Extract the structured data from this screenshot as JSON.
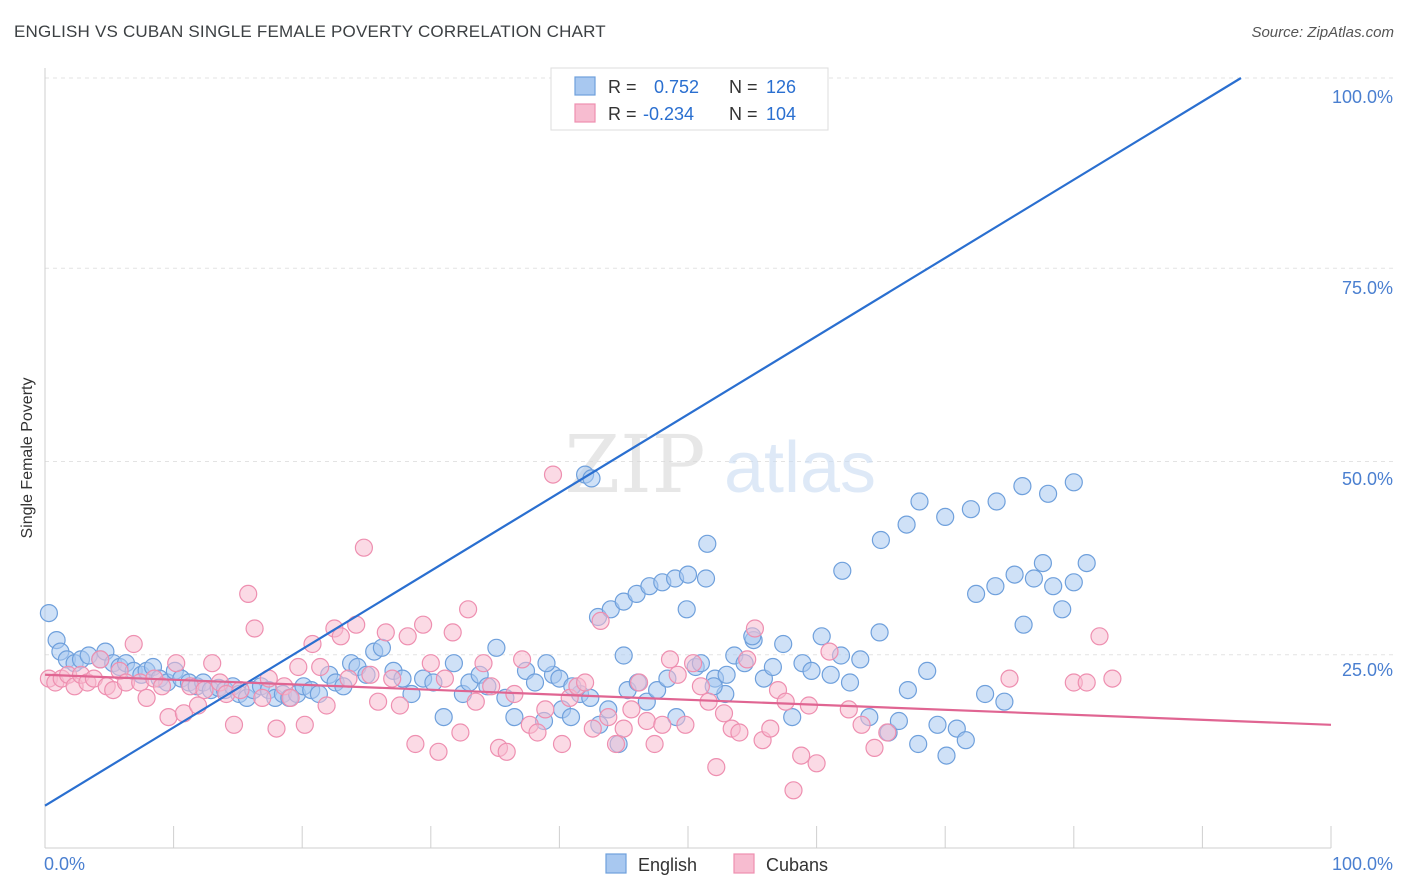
{
  "header": {
    "title": "ENGLISH VS CUBAN SINGLE FEMALE POVERTY CORRELATION CHART",
    "source": "Source: ZipAtlas.com"
  },
  "watermark": {
    "zip": "ZIP",
    "atlas": "atlas"
  },
  "colors": {
    "english_fill": "#a8c8f0",
    "english_stroke": "#6fa0dc",
    "english_line": "#2a6fd0",
    "cubans_fill": "#f7bcd0",
    "cubans_stroke": "#ee8fb0",
    "cubans_line": "#e06592",
    "tick_label": "#4a7fd0",
    "grid": "#e3e3e3"
  },
  "legend_top": {
    "english": {
      "r_label": "R =",
      "r_value": "0.752",
      "n_label": "N =",
      "n_value": "126"
    },
    "cubans": {
      "r_label": "R =",
      "r_value": "-0.234",
      "n_label": "N =",
      "n_value": "104"
    }
  },
  "legend_bottom": {
    "english": "English",
    "cubans": "Cubans"
  },
  "chart_data": {
    "type": "scatter",
    "xlabel": "",
    "ylabel": "Single Female Poverty",
    "xlim": [
      0,
      100
    ],
    "ylim": [
      0,
      100
    ],
    "x_tick_labels": [
      "0.0%",
      "100.0%"
    ],
    "y_tick_labels": [
      "25.0%",
      "50.0%",
      "75.0%",
      "100.0%"
    ],
    "y_ticks": [
      25,
      50,
      75,
      100
    ],
    "grid": true,
    "legend_position": "bottom",
    "series": [
      {
        "name": "English",
        "r": 0.752,
        "n": 126,
        "trend": [
          [
            0,
            5.5
          ],
          [
            93,
            100
          ]
        ],
        "points": [
          [
            0.3,
            30.5
          ],
          [
            0.9,
            27
          ],
          [
            1.2,
            25.5
          ],
          [
            1.7,
            24.5
          ],
          [
            2.3,
            24
          ],
          [
            2.8,
            24.5
          ],
          [
            3.4,
            25
          ],
          [
            4.3,
            24.5
          ],
          [
            4.7,
            25.5
          ],
          [
            5.3,
            24
          ],
          [
            5.8,
            23.5
          ],
          [
            6.3,
            24
          ],
          [
            6.9,
            23
          ],
          [
            7.5,
            22.5
          ],
          [
            7.9,
            23
          ],
          [
            8.4,
            23.5
          ],
          [
            8.9,
            22
          ],
          [
            9.5,
            21.5
          ],
          [
            10.1,
            23
          ],
          [
            10.6,
            22
          ],
          [
            11.2,
            21.5
          ],
          [
            11.8,
            21
          ],
          [
            12.3,
            21.5
          ],
          [
            12.9,
            20.5
          ],
          [
            13.5,
            20.8
          ],
          [
            14,
            20.5
          ],
          [
            14.6,
            21
          ],
          [
            15.1,
            20
          ],
          [
            15.7,
            19.5
          ],
          [
            16.2,
            20.5
          ],
          [
            16.8,
            21
          ],
          [
            17.4,
            20.5
          ],
          [
            17.9,
            19.5
          ],
          [
            18.5,
            20
          ],
          [
            19,
            19.5
          ],
          [
            19.6,
            20
          ],
          [
            20.1,
            21
          ],
          [
            20.7,
            20.5
          ],
          [
            21.3,
            20
          ],
          [
            22.1,
            22.5
          ],
          [
            22.6,
            21.5
          ],
          [
            23.2,
            21
          ],
          [
            23.8,
            24
          ],
          [
            24.3,
            23.5
          ],
          [
            25,
            22.5
          ],
          [
            25.6,
            25.5
          ],
          [
            26.2,
            26
          ],
          [
            27.1,
            23
          ],
          [
            27.8,
            22
          ],
          [
            28.5,
            20
          ],
          [
            29.4,
            22
          ],
          [
            30.2,
            21.5
          ],
          [
            31,
            17
          ],
          [
            31.8,
            24
          ],
          [
            32.5,
            20
          ],
          [
            33,
            21.5
          ],
          [
            33.8,
            22.5
          ],
          [
            34.4,
            21
          ],
          [
            35.1,
            26
          ],
          [
            35.8,
            19.5
          ],
          [
            36.5,
            17
          ],
          [
            37.4,
            23
          ],
          [
            38.1,
            21.5
          ],
          [
            38.8,
            16.5
          ],
          [
            39.5,
            22.5
          ],
          [
            40.2,
            18
          ],
          [
            40.9,
            17
          ],
          [
            41.6,
            20
          ],
          [
            42.4,
            19.5
          ],
          [
            43.1,
            16
          ],
          [
            43.8,
            18
          ],
          [
            44.6,
            13.5
          ],
          [
            45.3,
            20.5
          ],
          [
            46.1,
            21.5
          ],
          [
            46.8,
            19
          ],
          [
            47.6,
            20.5
          ],
          [
            48.4,
            22
          ],
          [
            49.1,
            17
          ],
          [
            49.9,
            31
          ],
          [
            50.6,
            23.5
          ],
          [
            51.4,
            35
          ],
          [
            52.1,
            22
          ],
          [
            52.9,
            20
          ],
          [
            53.6,
            25
          ],
          [
            54.4,
            24
          ],
          [
            55.1,
            27
          ],
          [
            55.9,
            22
          ],
          [
            56.6,
            23.5
          ],
          [
            57.4,
            26.5
          ],
          [
            58.1,
            17
          ],
          [
            58.9,
            24
          ],
          [
            59.6,
            23
          ],
          [
            60.4,
            27.5
          ],
          [
            61.1,
            22.5
          ],
          [
            61.9,
            25
          ],
          [
            62.6,
            21.5
          ],
          [
            63.4,
            24.5
          ],
          [
            64.1,
            17
          ],
          [
            64.9,
            28
          ],
          [
            65.6,
            15
          ],
          [
            66.4,
            16.5
          ],
          [
            67.1,
            20.5
          ],
          [
            67.9,
            13.5
          ],
          [
            68.6,
            23
          ],
          [
            69.4,
            16
          ],
          [
            70.1,
            12
          ],
          [
            70.9,
            15.5
          ],
          [
            71.6,
            14
          ],
          [
            72.4,
            33
          ],
          [
            73.1,
            20
          ],
          [
            73.9,
            34
          ],
          [
            74.6,
            19
          ],
          [
            75.4,
            35.5
          ],
          [
            76.1,
            29
          ],
          [
            76.9,
            35
          ],
          [
            77.6,
            37
          ],
          [
            78.4,
            34
          ],
          [
            79.1,
            31
          ],
          [
            80,
            34.5
          ],
          [
            81,
            37
          ],
          [
            51.5,
            39.5
          ],
          [
            42,
            48.5
          ],
          [
            42.5,
            48
          ],
          [
            43,
            30
          ],
          [
            44,
            31
          ],
          [
            45,
            32
          ],
          [
            46,
            33
          ],
          [
            47,
            34
          ],
          [
            48,
            34.5
          ],
          [
            62,
            36
          ],
          [
            49,
            35
          ],
          [
            50,
            35.5
          ],
          [
            65,
            40
          ],
          [
            67,
            42
          ],
          [
            68,
            45
          ],
          [
            70,
            43
          ],
          [
            72,
            44
          ],
          [
            74,
            45
          ],
          [
            76,
            47
          ],
          [
            78,
            46
          ],
          [
            80,
            47.5
          ],
          [
            45,
            25
          ],
          [
            55,
            27.5
          ],
          [
            51,
            24
          ],
          [
            39,
            24
          ],
          [
            40,
            22
          ],
          [
            41,
            21
          ],
          [
            52,
            21
          ],
          [
            53,
            22.5
          ]
        ]
      },
      {
        "name": "Cubans",
        "r": -0.234,
        "n": 104,
        "trend": [
          [
            0,
            22.5
          ],
          [
            100,
            16
          ]
        ],
        "points": [
          [
            0.3,
            22
          ],
          [
            0.8,
            21.5
          ],
          [
            1.3,
            22
          ],
          [
            1.8,
            22.5
          ],
          [
            2.3,
            21
          ],
          [
            2.8,
            22.5
          ],
          [
            3.3,
            21.5
          ],
          [
            3.8,
            22
          ],
          [
            4.3,
            24.5
          ],
          [
            4.8,
            21
          ],
          [
            5.3,
            20.5
          ],
          [
            5.8,
            23
          ],
          [
            6.3,
            21.5
          ],
          [
            6.9,
            26.5
          ],
          [
            7.4,
            21.5
          ],
          [
            7.9,
            19.5
          ],
          [
            8.5,
            22
          ],
          [
            9.1,
            21
          ],
          [
            9.6,
            17
          ],
          [
            10.2,
            24
          ],
          [
            10.8,
            17.5
          ],
          [
            11.3,
            21
          ],
          [
            11.9,
            18.5
          ],
          [
            12.4,
            20.5
          ],
          [
            13,
            24
          ],
          [
            13.6,
            21.5
          ],
          [
            14.1,
            20
          ],
          [
            14.7,
            16
          ],
          [
            15.2,
            20.5
          ],
          [
            15.8,
            33
          ],
          [
            16.3,
            28.5
          ],
          [
            16.9,
            19.5
          ],
          [
            17.4,
            22
          ],
          [
            18,
            15.5
          ],
          [
            18.6,
            21
          ],
          [
            19.1,
            19.5
          ],
          [
            19.7,
            23.5
          ],
          [
            20.2,
            16
          ],
          [
            20.8,
            26.5
          ],
          [
            21.4,
            23.5
          ],
          [
            21.9,
            18.5
          ],
          [
            22.5,
            28.5
          ],
          [
            23,
            27.5
          ],
          [
            23.6,
            22
          ],
          [
            24.2,
            29
          ],
          [
            24.8,
            39
          ],
          [
            25.3,
            22.5
          ],
          [
            25.9,
            19
          ],
          [
            26.5,
            28
          ],
          [
            27,
            22
          ],
          [
            27.6,
            18.5
          ],
          [
            28.2,
            27.5
          ],
          [
            28.8,
            13.5
          ],
          [
            29.4,
            29
          ],
          [
            30,
            24
          ],
          [
            30.6,
            12.5
          ],
          [
            31.1,
            22
          ],
          [
            31.7,
            28
          ],
          [
            32.3,
            15
          ],
          [
            32.9,
            31
          ],
          [
            33.5,
            19
          ],
          [
            34.1,
            24
          ],
          [
            34.7,
            21
          ],
          [
            35.3,
            13
          ],
          [
            35.9,
            12.5
          ],
          [
            36.5,
            20
          ],
          [
            37.1,
            24.5
          ],
          [
            37.7,
            16
          ],
          [
            38.3,
            15
          ],
          [
            38.9,
            18
          ],
          [
            39.5,
            48.5
          ],
          [
            40.2,
            13.5
          ],
          [
            40.8,
            19.5
          ],
          [
            41.4,
            21
          ],
          [
            42,
            21.5
          ],
          [
            42.6,
            15.5
          ],
          [
            43.2,
            29.5
          ],
          [
            43.8,
            17
          ],
          [
            44.4,
            13.5
          ],
          [
            45,
            15.5
          ],
          [
            45.6,
            18
          ],
          [
            46.2,
            21.5
          ],
          [
            46.8,
            16.5
          ],
          [
            47.4,
            13.5
          ],
          [
            48,
            16
          ],
          [
            48.6,
            24.5
          ],
          [
            49.2,
            22.5
          ],
          [
            49.8,
            16
          ],
          [
            50.4,
            24
          ],
          [
            51,
            21
          ],
          [
            51.6,
            19
          ],
          [
            52.2,
            10.5
          ],
          [
            52.8,
            17.5
          ],
          [
            53.4,
            15.5
          ],
          [
            54,
            15
          ],
          [
            54.6,
            24.5
          ],
          [
            55.2,
            28.5
          ],
          [
            55.8,
            14
          ],
          [
            56.4,
            15.5
          ],
          [
            57,
            20.5
          ],
          [
            57.6,
            19
          ],
          [
            58.2,
            7.5
          ],
          [
            58.8,
            12
          ],
          [
            59.4,
            18.5
          ],
          [
            60,
            11
          ],
          [
            61,
            25.5
          ],
          [
            62.5,
            18
          ],
          [
            63.5,
            16
          ],
          [
            64.5,
            13
          ],
          [
            65.5,
            15
          ],
          [
            75,
            22
          ],
          [
            80,
            21.5
          ],
          [
            81,
            21.5
          ],
          [
            82,
            27.5
          ],
          [
            83,
            22
          ]
        ]
      }
    ]
  }
}
